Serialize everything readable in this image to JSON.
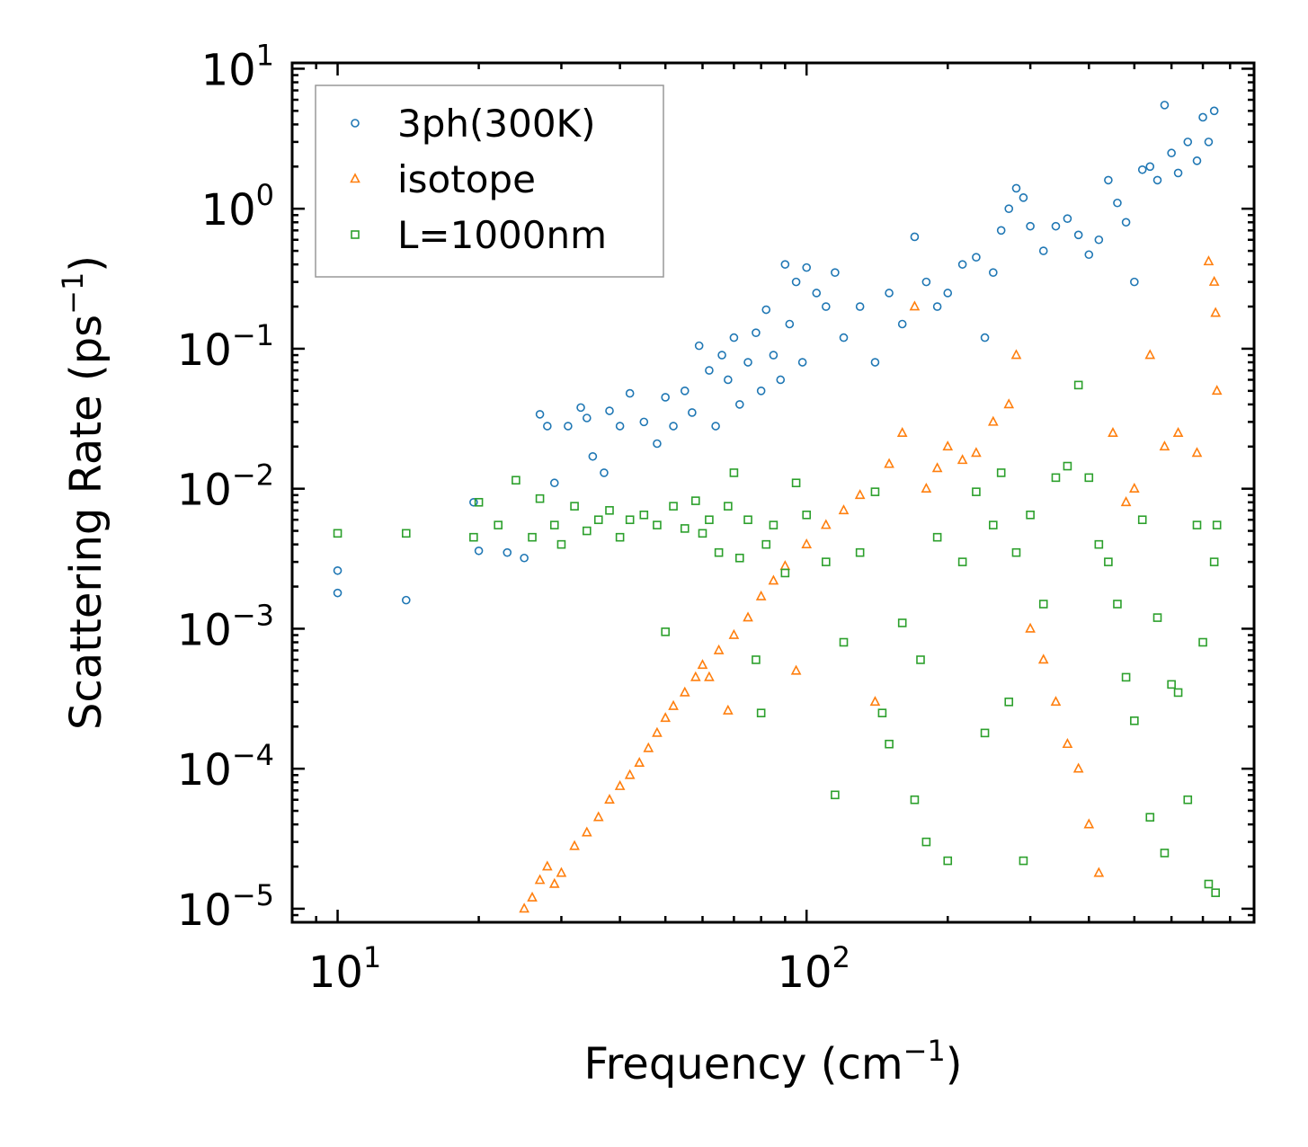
{
  "chart_data": {
    "type": "scatter",
    "title": "",
    "xlabel": "Frequency (cm",
    "xlabel_sup": "−1",
    "xlabel_end": ")",
    "ylabel": "Scattering Rate (ps",
    "ylabel_sup": "−1",
    "ylabel_end": ")",
    "x_scale": "log",
    "y_scale": "log",
    "xlim": [
      8,
      900
    ],
    "ylim": [
      8e-06,
      11
    ],
    "x_ticks": [
      {
        "base": "10",
        "exp": "1",
        "value": 10
      },
      {
        "base": "10",
        "exp": "2",
        "value": 100
      }
    ],
    "y_ticks": [
      {
        "base": "10",
        "exp": "1",
        "value": 10
      },
      {
        "base": "10",
        "exp": "0",
        "value": 1
      },
      {
        "base": "10",
        "exp": "−1",
        "value": 0.1
      },
      {
        "base": "10",
        "exp": "−2",
        "value": 0.01
      },
      {
        "base": "10",
        "exp": "−3",
        "value": 0.001
      },
      {
        "base": "10",
        "exp": "−4",
        "value": 0.0001
      },
      {
        "base": "10",
        "exp": "−5",
        "value": 1e-05
      }
    ],
    "legend_position": "top-left",
    "series": [
      {
        "name": "3ph(300K)",
        "marker": "circle",
        "color": "#1f77b4",
        "points": [
          [
            10,
            0.0026
          ],
          [
            10,
            0.0018
          ],
          [
            14,
            0.0016
          ],
          [
            19.5,
            0.008
          ],
          [
            20,
            0.0036
          ],
          [
            23,
            0.0035
          ],
          [
            25,
            0.0032
          ],
          [
            27,
            0.034
          ],
          [
            28,
            0.028
          ],
          [
            29,
            0.011
          ],
          [
            31,
            0.028
          ],
          [
            33,
            0.038
          ],
          [
            34,
            0.032
          ],
          [
            35,
            0.017
          ],
          [
            37,
            0.013
          ],
          [
            38,
            0.036
          ],
          [
            40,
            0.028
          ],
          [
            42,
            0.048
          ],
          [
            45,
            0.03
          ],
          [
            48,
            0.021
          ],
          [
            50,
            0.045
          ],
          [
            52,
            0.028
          ],
          [
            55,
            0.05
          ],
          [
            57,
            0.035
          ],
          [
            59,
            0.105
          ],
          [
            62,
            0.07
          ],
          [
            64,
            0.028
          ],
          [
            66,
            0.09
          ],
          [
            68,
            0.06
          ],
          [
            70,
            0.12
          ],
          [
            72,
            0.04
          ],
          [
            75,
            0.08
          ],
          [
            78,
            0.13
          ],
          [
            80,
            0.05
          ],
          [
            82,
            0.19
          ],
          [
            85,
            0.09
          ],
          [
            88,
            0.06
          ],
          [
            90,
            0.4
          ],
          [
            92,
            0.15
          ],
          [
            95,
            0.3
          ],
          [
            98,
            0.08
          ],
          [
            100,
            0.38
          ],
          [
            105,
            0.25
          ],
          [
            110,
            0.2
          ],
          [
            115,
            0.35
          ],
          [
            120,
            0.12
          ],
          [
            130,
            0.2
          ],
          [
            140,
            0.08
          ],
          [
            150,
            0.25
          ],
          [
            160,
            0.15
          ],
          [
            170,
            0.63
          ],
          [
            180,
            0.3
          ],
          [
            190,
            0.2
          ],
          [
            200,
            0.25
          ],
          [
            215,
            0.4
          ],
          [
            230,
            0.45
          ],
          [
            240,
            0.12
          ],
          [
            250,
            0.35
          ],
          [
            260,
            0.7
          ],
          [
            270,
            1.0
          ],
          [
            280,
            1.4
          ],
          [
            290,
            1.2
          ],
          [
            300,
            0.75
          ],
          [
            320,
            0.5
          ],
          [
            340,
            0.75
          ],
          [
            360,
            0.85
          ],
          [
            380,
            0.65
          ],
          [
            400,
            0.47
          ],
          [
            420,
            0.6
          ],
          [
            440,
            1.6
          ],
          [
            460,
            1.1
          ],
          [
            480,
            0.8
          ],
          [
            500,
            0.3
          ],
          [
            520,
            1.9
          ],
          [
            540,
            2.0
          ],
          [
            560,
            1.6
          ],
          [
            580,
            5.5
          ],
          [
            600,
            2.5
          ],
          [
            620,
            1.8
          ],
          [
            650,
            3.0
          ],
          [
            680,
            2.2
          ],
          [
            700,
            4.5
          ],
          [
            720,
            3.0
          ],
          [
            740,
            5.0
          ]
        ]
      },
      {
        "name": "isotope",
        "marker": "triangle",
        "color": "#ff7f0e",
        "points": [
          [
            25,
            1e-05
          ],
          [
            26,
            1.2e-05
          ],
          [
            27,
            1.6e-05
          ],
          [
            28,
            2e-05
          ],
          [
            29,
            1.5e-05
          ],
          [
            30,
            1.8e-05
          ],
          [
            32,
            2.8e-05
          ],
          [
            34,
            3.5e-05
          ],
          [
            36,
            4.5e-05
          ],
          [
            38,
            6e-05
          ],
          [
            40,
            7.5e-05
          ],
          [
            42,
            9e-05
          ],
          [
            44,
            0.00011
          ],
          [
            46,
            0.00014
          ],
          [
            48,
            0.00018
          ],
          [
            50,
            0.00023
          ],
          [
            52,
            0.00028
          ],
          [
            55,
            0.00035
          ],
          [
            58,
            0.00045
          ],
          [
            60,
            0.00055
          ],
          [
            62,
            0.00045
          ],
          [
            65,
            0.0007
          ],
          [
            68,
            0.00026
          ],
          [
            70,
            0.0009
          ],
          [
            75,
            0.0012
          ],
          [
            80,
            0.0017
          ],
          [
            85,
            0.0022
          ],
          [
            90,
            0.0028
          ],
          [
            95,
            0.0005
          ],
          [
            100,
            0.004
          ],
          [
            110,
            0.0055
          ],
          [
            120,
            0.007
          ],
          [
            130,
            0.009
          ],
          [
            140,
            0.0003
          ],
          [
            150,
            0.015
          ],
          [
            160,
            0.025
          ],
          [
            170,
            0.2
          ],
          [
            180,
            0.01
          ],
          [
            190,
            0.014
          ],
          [
            200,
            0.02
          ],
          [
            215,
            0.016
          ],
          [
            230,
            0.018
          ],
          [
            250,
            0.03
          ],
          [
            270,
            0.04
          ],
          [
            280,
            0.09
          ],
          [
            300,
            0.001
          ],
          [
            320,
            0.0006
          ],
          [
            340,
            0.0003
          ],
          [
            360,
            0.00015
          ],
          [
            380,
            0.0001
          ],
          [
            400,
            4e-05
          ],
          [
            420,
            1.8e-05
          ],
          [
            450,
            0.025
          ],
          [
            480,
            0.008
          ],
          [
            500,
            0.01
          ],
          [
            540,
            0.09
          ],
          [
            580,
            0.02
          ],
          [
            620,
            0.025
          ],
          [
            680,
            0.018
          ],
          [
            720,
            0.42
          ],
          [
            740,
            0.3
          ],
          [
            745,
            0.18
          ],
          [
            750,
            0.05
          ]
        ]
      },
      {
        "name": "L=1000nm",
        "marker": "square",
        "color": "#2ca02c",
        "points": [
          [
            10,
            0.0048
          ],
          [
            14,
            0.0048
          ],
          [
            19.5,
            0.0045
          ],
          [
            20,
            0.008
          ],
          [
            22,
            0.0055
          ],
          [
            24,
            0.0115
          ],
          [
            26,
            0.0045
          ],
          [
            27,
            0.0085
          ],
          [
            29,
            0.0055
          ],
          [
            30,
            0.004
          ],
          [
            32,
            0.0075
          ],
          [
            34,
            0.005
          ],
          [
            36,
            0.006
          ],
          [
            38,
            0.007
          ],
          [
            40,
            0.0045
          ],
          [
            42,
            0.006
          ],
          [
            45,
            0.0065
          ],
          [
            48,
            0.0055
          ],
          [
            50,
            0.00095
          ],
          [
            52,
            0.0075
          ],
          [
            55,
            0.0052
          ],
          [
            58,
            0.0082
          ],
          [
            60,
            0.0048
          ],
          [
            62,
            0.006
          ],
          [
            65,
            0.0035
          ],
          [
            68,
            0.0075
          ],
          [
            70,
            0.013
          ],
          [
            72,
            0.0032
          ],
          [
            75,
            0.006
          ],
          [
            78,
            0.0006
          ],
          [
            80,
            0.00025
          ],
          [
            82,
            0.004
          ],
          [
            85,
            0.0055
          ],
          [
            90,
            0.0025
          ],
          [
            95,
            0.011
          ],
          [
            100,
            0.0065
          ],
          [
            110,
            0.003
          ],
          [
            115,
            6.5e-05
          ],
          [
            120,
            0.0008
          ],
          [
            130,
            0.0035
          ],
          [
            140,
            0.0095
          ],
          [
            145,
            0.00025
          ],
          [
            150,
            0.00015
          ],
          [
            160,
            0.0011
          ],
          [
            170,
            6e-05
          ],
          [
            175,
            0.0006
          ],
          [
            180,
            3e-05
          ],
          [
            190,
            0.0045
          ],
          [
            200,
            2.2e-05
          ],
          [
            215,
            0.003
          ],
          [
            230,
            0.0095
          ],
          [
            240,
            0.00018
          ],
          [
            250,
            0.0055
          ],
          [
            260,
            0.013
          ],
          [
            270,
            0.0003
          ],
          [
            280,
            0.0035
          ],
          [
            290,
            2.2e-05
          ],
          [
            300,
            0.0065
          ],
          [
            320,
            0.0015
          ],
          [
            340,
            0.012
          ],
          [
            360,
            0.0145
          ],
          [
            380,
            0.055
          ],
          [
            400,
            0.012
          ],
          [
            420,
            0.004
          ],
          [
            440,
            0.003
          ],
          [
            460,
            0.0015
          ],
          [
            480,
            0.00045
          ],
          [
            500,
            0.00022
          ],
          [
            520,
            0.006
          ],
          [
            540,
            4.5e-05
          ],
          [
            560,
            0.0012
          ],
          [
            580,
            2.5e-05
          ],
          [
            600,
            0.0004
          ],
          [
            620,
            0.00035
          ],
          [
            650,
            6e-05
          ],
          [
            680,
            0.0055
          ],
          [
            700,
            0.0008
          ],
          [
            720,
            1.5e-05
          ],
          [
            740,
            0.003
          ],
          [
            745,
            1.3e-05
          ],
          [
            750,
            0.0055
          ]
        ]
      }
    ]
  }
}
